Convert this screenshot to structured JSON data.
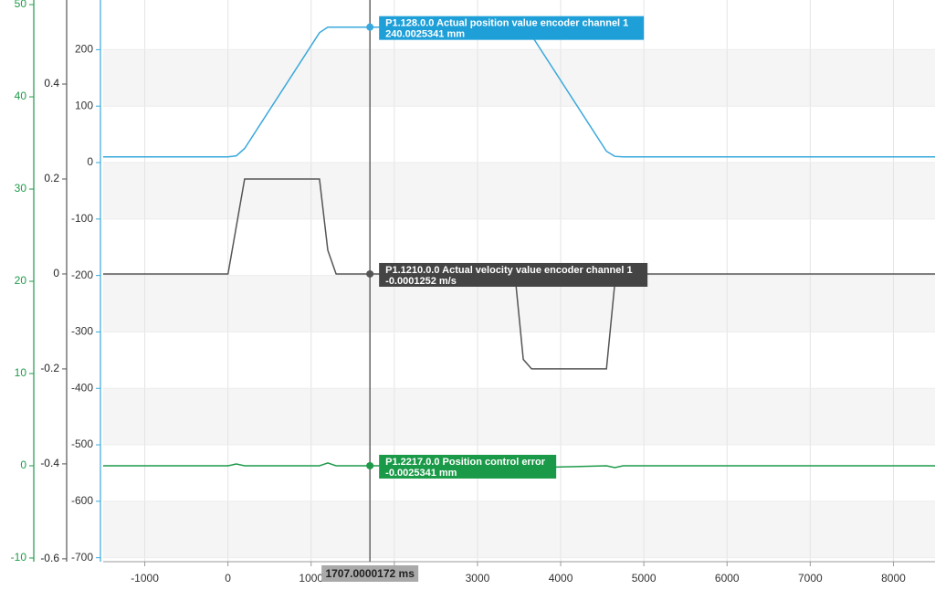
{
  "chart_data": {
    "type": "line",
    "x": [
      -1500,
      0,
      100,
      200,
      1100,
      1200,
      1300,
      3450,
      3550,
      3650,
      4550,
      4650,
      4750,
      8500
    ],
    "xlim": [
      -1500,
      8500
    ],
    "xticks": [
      -1000,
      0,
      1000,
      2000,
      3000,
      4000,
      5000,
      6000,
      7000,
      8000
    ],
    "ylim": [
      -10.4,
      50.5
    ],
    "yticks": [
      -10,
      0,
      10,
      20,
      30,
      40,
      50
    ],
    "y2lim": [
      -0.606,
      0.577
    ],
    "y2ticks": [
      -0.6,
      -0.4,
      -0.2,
      0,
      0.2,
      0.4
    ],
    "y3lim": [
      -707,
      288
    ],
    "y3ticks": [
      -700,
      -600,
      -500,
      -400,
      -300,
      -200,
      -100,
      0,
      100,
      200
    ],
    "series": [
      {
        "name": "P1.128.0.0 Actual position value encoder channel 1",
        "color": "#3aa8dc",
        "axis": "y3",
        "values": [
          10,
          10,
          12,
          25,
          230,
          240,
          240,
          240,
          238,
          225,
          20,
          11,
          10,
          10
        ]
      },
      {
        "name": "P1.1210.0.0 Actual velocity value encoder channel 1",
        "color": "#555555",
        "axis": "y2",
        "values": [
          0,
          0,
          0.1,
          0.2,
          0.2,
          0.05,
          0,
          0,
          -0.18,
          -0.2,
          -0.2,
          -0.02,
          0,
          0
        ]
      },
      {
        "name": "P1.2217.0.0 Position control error",
        "color": "#1e9a4a",
        "axis": "y",
        "values": [
          0,
          0,
          0.2,
          0,
          0,
          0.3,
          0,
          0,
          0,
          -0.2,
          0,
          -0.2,
          0,
          0
        ]
      }
    ],
    "annotations": [
      {
        "title": "P1.128.0.0 Actual position value encoder channel 1",
        "value": "240.0025341 mm"
      },
      {
        "title": "P1.1210.0.0 Actual velocity value encoder channel 1",
        "value": "-0.0001252 m/s"
      },
      {
        "title": "P1.2217.0.0 Position control error",
        "value": "-0.0025341 mm"
      }
    ],
    "cursor": {
      "value": 1707.0000172,
      "label": "1707.0000172 ms"
    },
    "grid": true
  }
}
